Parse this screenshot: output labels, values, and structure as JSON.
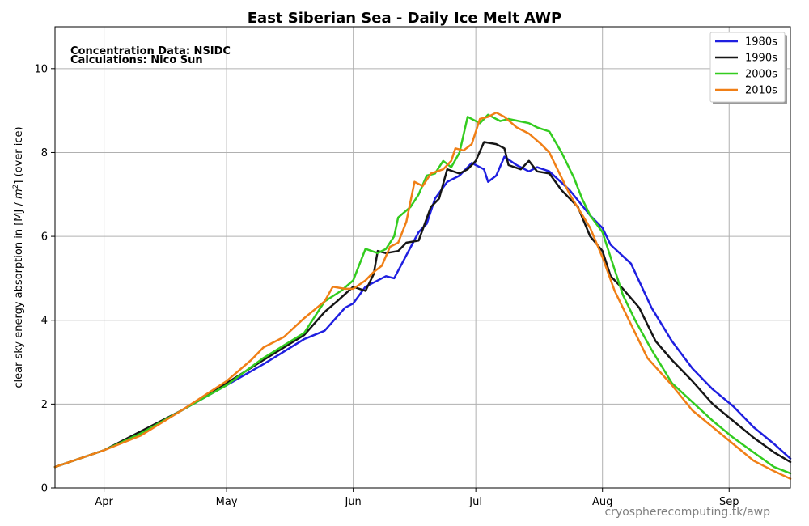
{
  "chart_data": {
    "type": "line",
    "title": "East Siberian Sea - Daily Ice Melt  AWP",
    "ylabel_prefix": "clear sky energy absorption in  [MJ / ",
    "ylabel_unit_var": "m",
    "ylabel_unit_exp": "2",
    "ylabel_suffix": "] (over ice)",
    "xlabel": "",
    "annotations": [
      "Concentration Data: NSIDC",
      "Calculations: Nico Sun"
    ],
    "credit": "cryospherecomputing.tk/awp",
    "xlim": [
      79,
      259
    ],
    "ylim": [
      0,
      11
    ],
    "x_ticks": [
      {
        "day": 91,
        "label": "Apr"
      },
      {
        "day": 121,
        "label": "May"
      },
      {
        "day": 152,
        "label": "Jun"
      },
      {
        "day": 182,
        "label": "Jul"
      },
      {
        "day": 213,
        "label": "Aug"
      },
      {
        "day": 244,
        "label": "Sep"
      }
    ],
    "y_ticks": [
      0,
      2,
      4,
      6,
      8,
      10
    ],
    "y_tick_labels": [
      "0",
      "2",
      "4",
      "6",
      "8",
      "10"
    ],
    "grid": true,
    "legend_position": "top-right",
    "series": [
      {
        "name": "1980s",
        "color": "#1f1fe0",
        "points": [
          [
            79,
            0.5
          ],
          [
            91,
            0.9
          ],
          [
            100,
            1.3
          ],
          [
            110,
            1.85
          ],
          [
            121,
            2.45
          ],
          [
            130,
            2.95
          ],
          [
            140,
            3.55
          ],
          [
            145,
            3.75
          ],
          [
            150,
            4.3
          ],
          [
            152,
            4.4
          ],
          [
            155,
            4.8
          ],
          [
            160,
            5.05
          ],
          [
            162,
            5.0
          ],
          [
            165,
            5.55
          ],
          [
            168,
            6.1
          ],
          [
            170,
            6.3
          ],
          [
            172,
            6.9
          ],
          [
            175,
            7.3
          ],
          [
            178,
            7.45
          ],
          [
            181,
            7.75
          ],
          [
            184,
            7.6
          ],
          [
            185,
            7.3
          ],
          [
            187,
            7.45
          ],
          [
            189,
            7.9
          ],
          [
            192,
            7.7
          ],
          [
            195,
            7.55
          ],
          [
            197,
            7.65
          ],
          [
            200,
            7.55
          ],
          [
            205,
            7.1
          ],
          [
            210,
            6.5
          ],
          [
            213,
            6.2
          ],
          [
            215,
            5.8
          ],
          [
            220,
            5.35
          ],
          [
            225,
            4.3
          ],
          [
            230,
            3.5
          ],
          [
            235,
            2.85
          ],
          [
            240,
            2.35
          ],
          [
            245,
            1.95
          ],
          [
            250,
            1.45
          ],
          [
            255,
            1.05
          ],
          [
            259,
            0.7
          ]
        ]
      },
      {
        "name": "1990s",
        "color": "#161616",
        "points": [
          [
            79,
            0.5
          ],
          [
            91,
            0.9
          ],
          [
            100,
            1.35
          ],
          [
            110,
            1.85
          ],
          [
            121,
            2.5
          ],
          [
            130,
            3.05
          ],
          [
            140,
            3.65
          ],
          [
            145,
            4.2
          ],
          [
            148,
            4.45
          ],
          [
            152,
            4.8
          ],
          [
            155,
            4.7
          ],
          [
            157,
            5.1
          ],
          [
            158,
            5.65
          ],
          [
            160,
            5.6
          ],
          [
            163,
            5.65
          ],
          [
            165,
            5.85
          ],
          [
            168,
            5.9
          ],
          [
            171,
            6.7
          ],
          [
            173,
            6.9
          ],
          [
            175,
            7.6
          ],
          [
            178,
            7.5
          ],
          [
            180,
            7.6
          ],
          [
            182,
            7.8
          ],
          [
            184,
            8.25
          ],
          [
            187,
            8.2
          ],
          [
            189,
            8.1
          ],
          [
            190,
            7.7
          ],
          [
            193,
            7.6
          ],
          [
            195,
            7.8
          ],
          [
            197,
            7.55
          ],
          [
            200,
            7.5
          ],
          [
            203,
            7.1
          ],
          [
            207,
            6.7
          ],
          [
            210,
            6.0
          ],
          [
            213,
            5.65
          ],
          [
            215,
            5.05
          ],
          [
            218,
            4.75
          ],
          [
            222,
            4.3
          ],
          [
            226,
            3.5
          ],
          [
            230,
            3.05
          ],
          [
            235,
            2.55
          ],
          [
            240,
            2.0
          ],
          [
            245,
            1.6
          ],
          [
            250,
            1.2
          ],
          [
            255,
            0.85
          ],
          [
            259,
            0.62
          ]
        ]
      },
      {
        "name": "2000s",
        "color": "#33cc1f",
        "points": [
          [
            79,
            0.5
          ],
          [
            91,
            0.9
          ],
          [
            100,
            1.3
          ],
          [
            110,
            1.85
          ],
          [
            121,
            2.45
          ],
          [
            130,
            3.1
          ],
          [
            140,
            3.7
          ],
          [
            145,
            4.45
          ],
          [
            149,
            4.7
          ],
          [
            152,
            4.95
          ],
          [
            155,
            5.7
          ],
          [
            158,
            5.6
          ],
          [
            160,
            5.7
          ],
          [
            162,
            6.0
          ],
          [
            163,
            6.45
          ],
          [
            166,
            6.7
          ],
          [
            168,
            7.0
          ],
          [
            170,
            7.45
          ],
          [
            172,
            7.5
          ],
          [
            174,
            7.8
          ],
          [
            176,
            7.65
          ],
          [
            178,
            8.0
          ],
          [
            180,
            8.85
          ],
          [
            183,
            8.7
          ],
          [
            185,
            8.9
          ],
          [
            188,
            8.75
          ],
          [
            190,
            8.8
          ],
          [
            195,
            8.7
          ],
          [
            197,
            8.6
          ],
          [
            200,
            8.5
          ],
          [
            203,
            8.0
          ],
          [
            206,
            7.4
          ],
          [
            208,
            6.9
          ],
          [
            210,
            6.5
          ],
          [
            213,
            6.1
          ],
          [
            215,
            5.5
          ],
          [
            218,
            4.6
          ],
          [
            221,
            4.0
          ],
          [
            225,
            3.3
          ],
          [
            230,
            2.5
          ],
          [
            235,
            2.05
          ],
          [
            240,
            1.6
          ],
          [
            245,
            1.2
          ],
          [
            250,
            0.85
          ],
          [
            255,
            0.5
          ],
          [
            259,
            0.35
          ]
        ]
      },
      {
        "name": "2010s",
        "color": "#f07f16",
        "points": [
          [
            79,
            0.5
          ],
          [
            91,
            0.9
          ],
          [
            100,
            1.25
          ],
          [
            110,
            1.85
          ],
          [
            121,
            2.55
          ],
          [
            127,
            3.05
          ],
          [
            130,
            3.35
          ],
          [
            135,
            3.6
          ],
          [
            140,
            4.05
          ],
          [
            145,
            4.45
          ],
          [
            147,
            4.8
          ],
          [
            150,
            4.75
          ],
          [
            152,
            4.75
          ],
          [
            155,
            4.95
          ],
          [
            157,
            5.15
          ],
          [
            159,
            5.3
          ],
          [
            161,
            5.75
          ],
          [
            163,
            5.85
          ],
          [
            165,
            6.35
          ],
          [
            167,
            7.3
          ],
          [
            169,
            7.2
          ],
          [
            171,
            7.5
          ],
          [
            174,
            7.6
          ],
          [
            176,
            7.8
          ],
          [
            177,
            8.1
          ],
          [
            179,
            8.05
          ],
          [
            181,
            8.2
          ],
          [
            183,
            8.8
          ],
          [
            185,
            8.85
          ],
          [
            187,
            8.95
          ],
          [
            189,
            8.85
          ],
          [
            192,
            8.6
          ],
          [
            195,
            8.45
          ],
          [
            198,
            8.2
          ],
          [
            200,
            8.0
          ],
          [
            202,
            7.6
          ],
          [
            205,
            7.0
          ],
          [
            210,
            6.2
          ],
          [
            213,
            5.5
          ],
          [
            216,
            4.7
          ],
          [
            220,
            3.9
          ],
          [
            224,
            3.1
          ],
          [
            230,
            2.45
          ],
          [
            235,
            1.85
          ],
          [
            240,
            1.45
          ],
          [
            245,
            1.05
          ],
          [
            250,
            0.65
          ],
          [
            255,
            0.4
          ],
          [
            259,
            0.22
          ]
        ]
      }
    ]
  }
}
